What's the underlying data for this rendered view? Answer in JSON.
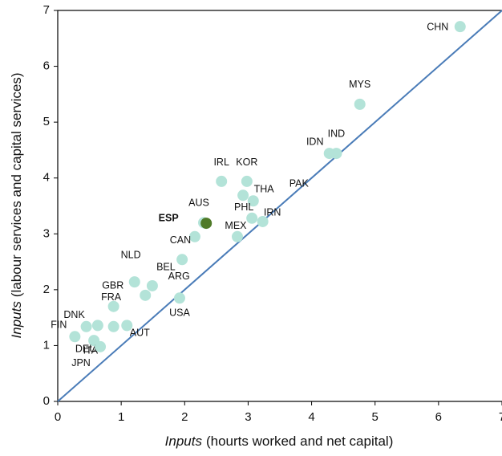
{
  "chart_data": {
    "type": "scatter",
    "xlabel_emphasis": "Inputs",
    "xlabel": "(hourts worked and net capital)",
    "ylabel_emphasis": "Inputs",
    "ylabel": "(labour services and capital services)",
    "xlim": [
      0,
      7
    ],
    "ylim": [
      0,
      7
    ],
    "xticks": [
      0,
      1,
      2,
      3,
      4,
      5,
      6,
      7
    ],
    "yticks": [
      0,
      1,
      2,
      3,
      4,
      5,
      6,
      7
    ],
    "line_color": "#4a7cb8",
    "series": [
      {
        "color": "#b3e3d8",
        "labels": [
          "CHN",
          "MYS",
          "IDN",
          "IND",
          "IRL",
          "KOR",
          "THA",
          "PAK",
          "AUS",
          "PHL",
          "IRN",
          "MEX",
          "CAN",
          "NLD",
          "BEL",
          "GBR",
          "ARG",
          "USA",
          "FRA",
          "AUT",
          null,
          "DNK",
          "ITA",
          "FIN",
          "DEU",
          "JPN"
        ],
        "x": [
          6.34,
          4.76,
          4.28,
          4.39,
          2.58,
          2.98,
          2.92,
          3.08,
          2.3,
          3.06,
          3.23,
          2.83,
          2.16,
          1.96,
          1.49,
          1.21,
          1.38,
          1.92,
          0.88,
          1.09,
          0.88,
          0.45,
          0.63,
          0.27,
          0.57,
          0.67
        ],
        "y": [
          6.71,
          5.32,
          4.44,
          4.44,
          3.94,
          3.94,
          3.69,
          3.59,
          3.2,
          3.28,
          3.22,
          2.95,
          2.95,
          2.54,
          2.07,
          2.14,
          1.9,
          1.85,
          1.7,
          1.36,
          1.34,
          1.34,
          1.36,
          1.16,
          1.09,
          0.98
        ]
      },
      {
        "color": "#4f7a28",
        "bold": true,
        "labels": [
          "ESP"
        ],
        "x": [
          2.34
        ],
        "y": [
          3.19
        ]
      }
    ]
  }
}
